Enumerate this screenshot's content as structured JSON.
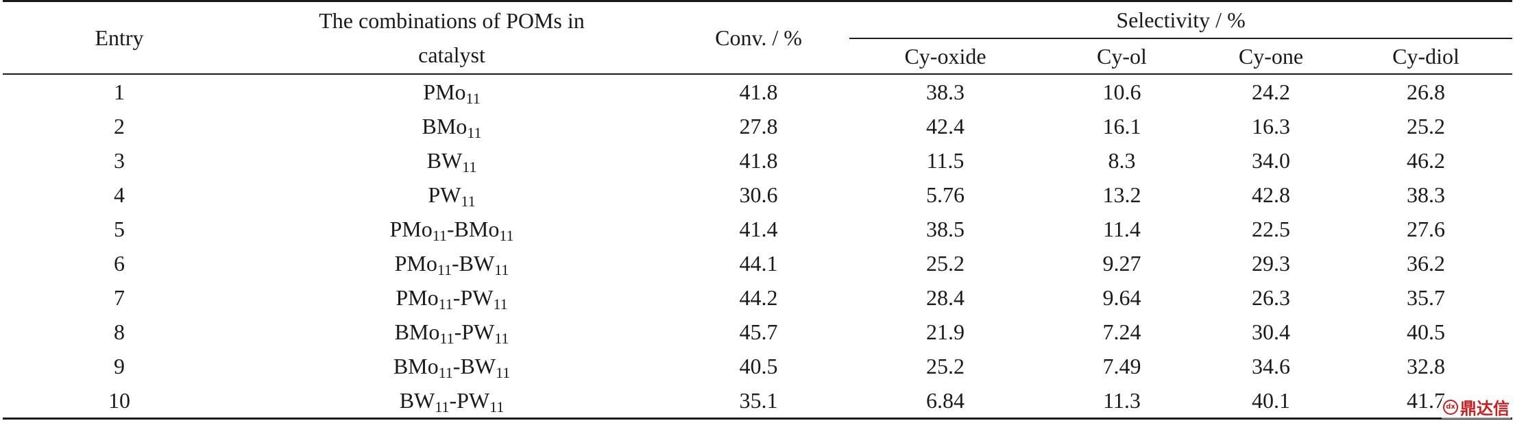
{
  "table": {
    "headers": {
      "entry": "Entry",
      "combinations_line1": "The combinations of POMs in",
      "combinations_line2": "catalyst",
      "conv": "Conv. / %",
      "selectivity": "Selectivity / %",
      "cy_oxide": "Cy-oxide",
      "cy_ol": "Cy-ol",
      "cy_one": "Cy-one",
      "cy_diol": "Cy-diol"
    },
    "rows": [
      {
        "entry": "1",
        "combo": [
          [
            "PMo",
            "11"
          ]
        ],
        "conv": "41.8",
        "cy_oxide": "38.3",
        "cy_ol": "10.6",
        "cy_one": "24.2",
        "cy_diol": "26.8"
      },
      {
        "entry": "2",
        "combo": [
          [
            "BMo",
            "11"
          ]
        ],
        "conv": "27.8",
        "cy_oxide": "42.4",
        "cy_ol": "16.1",
        "cy_one": "16.3",
        "cy_diol": "25.2"
      },
      {
        "entry": "3",
        "combo": [
          [
            "BW",
            "11"
          ]
        ],
        "conv": "41.8",
        "cy_oxide": "11.5",
        "cy_ol": "8.3",
        "cy_one": "34.0",
        "cy_diol": "46.2"
      },
      {
        "entry": "4",
        "combo": [
          [
            "PW",
            "11"
          ]
        ],
        "conv": "30.6",
        "cy_oxide": "5.76",
        "cy_ol": "13.2",
        "cy_one": "42.8",
        "cy_diol": "38.3"
      },
      {
        "entry": "5",
        "combo": [
          [
            "PMo",
            "11"
          ],
          [
            "-BMo",
            "11"
          ]
        ],
        "conv": "41.4",
        "cy_oxide": "38.5",
        "cy_ol": "11.4",
        "cy_one": "22.5",
        "cy_diol": "27.6"
      },
      {
        "entry": "6",
        "combo": [
          [
            "PMo",
            "11"
          ],
          [
            "-BW",
            "11"
          ]
        ],
        "conv": "44.1",
        "cy_oxide": "25.2",
        "cy_ol": "9.27",
        "cy_one": "29.3",
        "cy_diol": "36.2"
      },
      {
        "entry": "7",
        "combo": [
          [
            "PMo",
            "11"
          ],
          [
            "-PW",
            "11"
          ]
        ],
        "conv": "44.2",
        "cy_oxide": "28.4",
        "cy_ol": "9.64",
        "cy_one": "26.3",
        "cy_diol": "35.7"
      },
      {
        "entry": "8",
        "combo": [
          [
            "BMo",
            "11"
          ],
          [
            "-PW",
            "11"
          ]
        ],
        "conv": "45.7",
        "cy_oxide": "21.9",
        "cy_ol": "7.24",
        "cy_one": "30.4",
        "cy_diol": "40.5"
      },
      {
        "entry": "9",
        "combo": [
          [
            "BMo",
            "11"
          ],
          [
            "-BW",
            "11"
          ]
        ],
        "conv": "40.5",
        "cy_oxide": "25.2",
        "cy_ol": "7.49",
        "cy_one": "34.6",
        "cy_diol": "32.8"
      },
      {
        "entry": "10",
        "combo": [
          [
            "BW",
            "11"
          ],
          [
            "-PW",
            "11"
          ]
        ],
        "conv": "35.1",
        "cy_oxide": "6.84",
        "cy_ol": "11.3",
        "cy_one": "40.1",
        "cy_diol": "41.7"
      }
    ]
  },
  "watermark": {
    "text": "鼎达信",
    "color": "#c81e1e"
  }
}
